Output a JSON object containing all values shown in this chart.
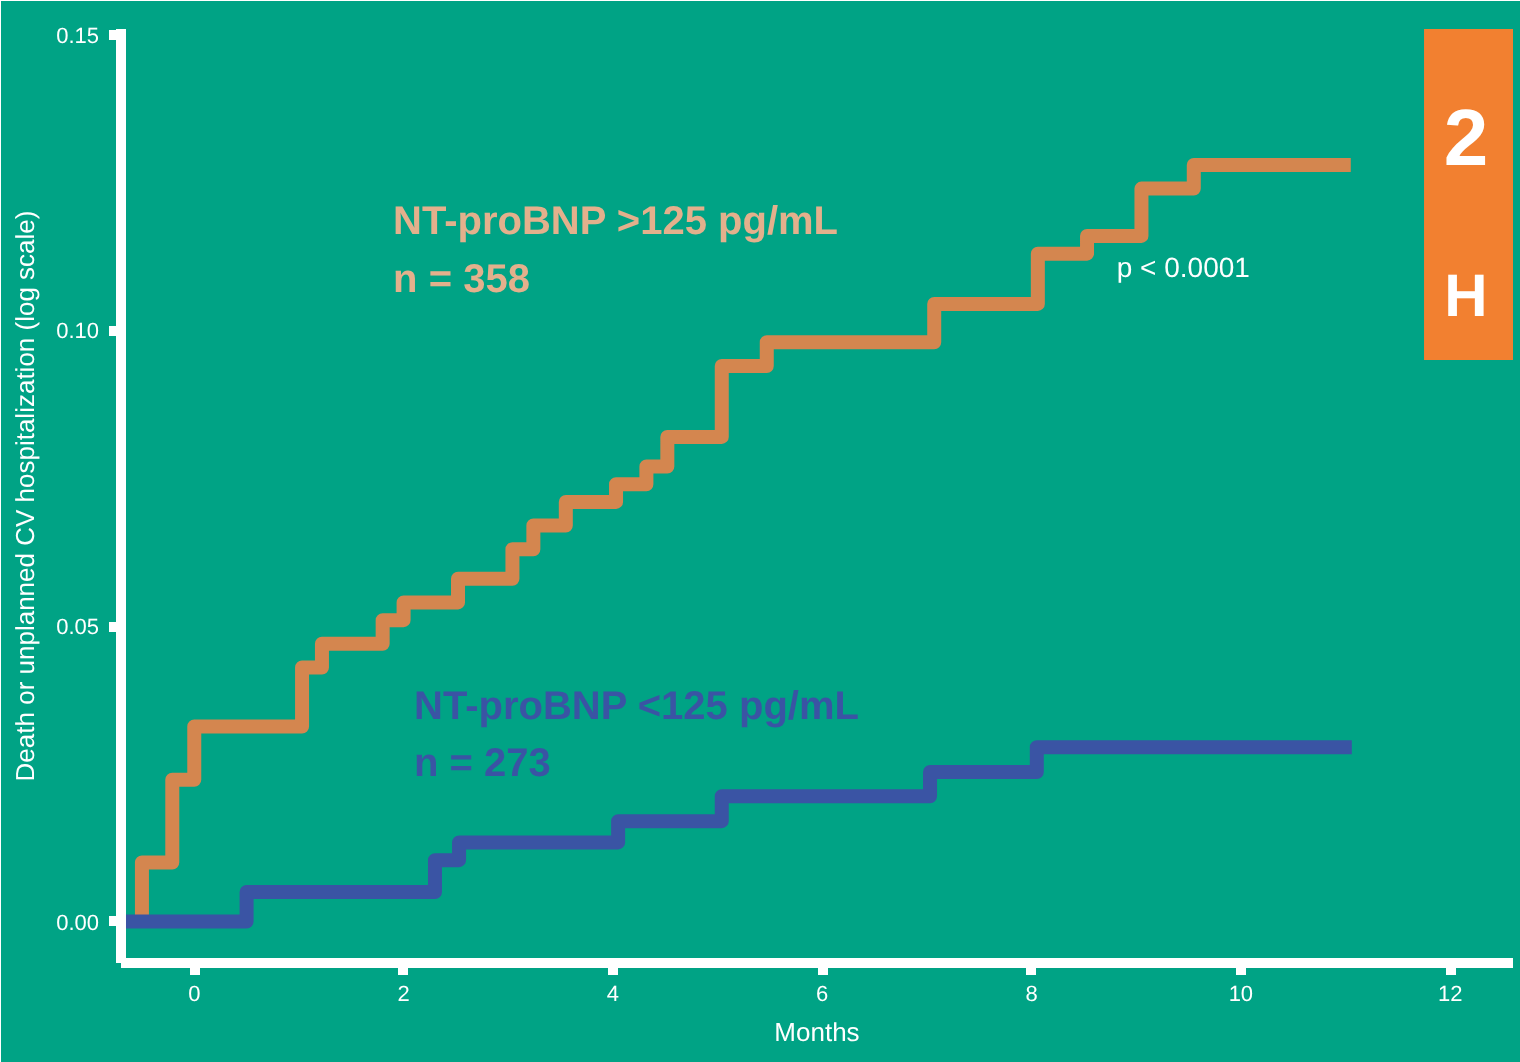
{
  "chart_data": {
    "type": "step",
    "xlabel": "Months",
    "ylabel": "Death or unplanned CV hospitalization (log scale)",
    "xlim": [
      -0.7,
      12.6
    ],
    "ylim": [
      -0.007,
      0.151
    ],
    "xticks": [
      0,
      2,
      4,
      6,
      8,
      10,
      12
    ],
    "yticks": [
      {
        "value": 0,
        "label": "0.00"
      },
      0.05,
      {
        "value": 0.1,
        "label": "0.10"
      },
      0.15
    ],
    "grid": false,
    "line_style": "solid",
    "annotations": [
      "p < 0.0001",
      "2",
      "H"
    ],
    "series": [
      {
        "name": "NT-proBNP >125 pg/mL\nn = 358",
        "color": "#d4864f",
        "x": [
          -0.5,
          -0.5,
          -0.21,
          0.0,
          1.03,
          1.22,
          1.8,
          2.0,
          2.52,
          3.04,
          3.24,
          3.55,
          4.03,
          4.32,
          4.52,
          5.04,
          5.47,
          7.07,
          8.06,
          8.53,
          9.05,
          9.55,
          11.05
        ],
        "values": [
          0,
          0.01,
          0.024,
          0.033,
          0.043,
          0.047,
          0.051,
          0.054,
          0.058,
          0.063,
          0.067,
          0.071,
          0.074,
          0.077,
          0.082,
          0.094,
          0.098,
          0.1045,
          0.113,
          0.116,
          0.124,
          0.128,
          0.128
        ]
      },
      {
        "name": "NT-proBNP <125 pg/mL\nn = 273",
        "color": "#3a54a4",
        "x": [
          -0.67,
          0.5,
          2.3,
          2.53,
          4.05,
          5.04,
          7.03,
          8.05,
          11.06
        ],
        "values": [
          0,
          0.005,
          0.0104,
          0.0134,
          0.017,
          0.0212,
          0.0253,
          0.0295,
          0.0295
        ]
      }
    ]
  }
}
